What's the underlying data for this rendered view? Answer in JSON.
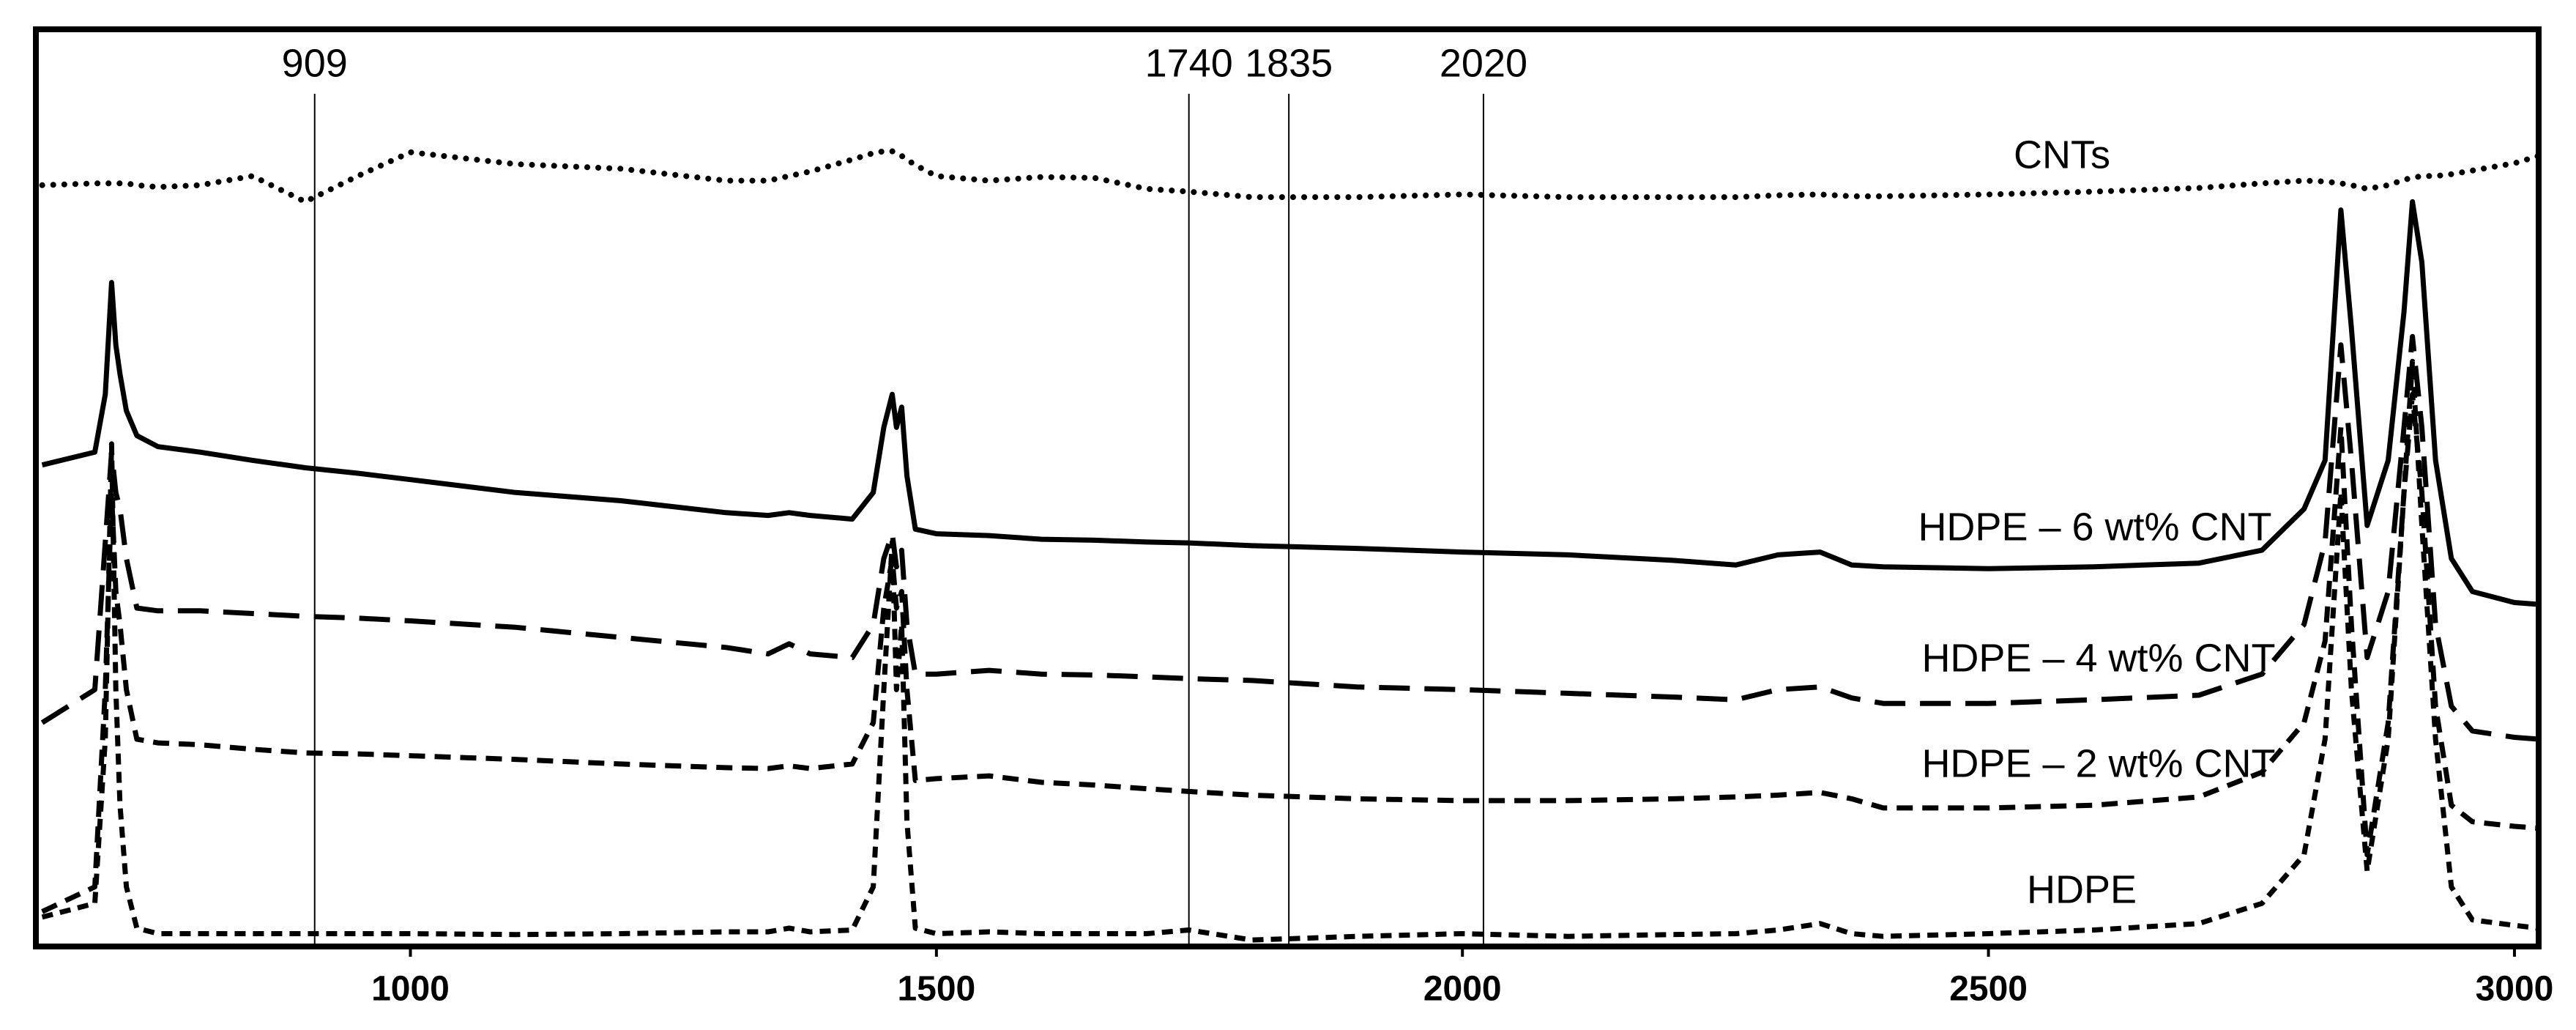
{
  "chart_data": {
    "type": "line",
    "x": [
      650,
      700,
      710,
      716,
      720,
      724,
      730,
      740,
      760,
      800,
      850,
      900,
      950,
      1000,
      1100,
      1200,
      1300,
      1340,
      1360,
      1380,
      1420,
      1440,
      1450,
      1458,
      1462,
      1467,
      1472,
      1480,
      1500,
      1550,
      1600,
      1650,
      1700,
      1740,
      1800,
      1900,
      2000,
      2100,
      2200,
      2260,
      2300,
      2340,
      2370,
      2400,
      2500,
      2600,
      2700,
      2760,
      2800,
      2820,
      2835,
      2845,
      2860,
      2880,
      2895,
      2903,
      2912,
      2925,
      2940,
      2960,
      3000,
      3023
    ],
    "series": [
      {
        "name": "CNTs",
        "color": "#000000",
        "dash": "dotted",
        "values": [
          83.0,
          83.2,
          83.2,
          83.2,
          83.2,
          83.2,
          83.2,
          83.0,
          82.8,
          83.0,
          84.0,
          81.2,
          84.0,
          86.6,
          85.3,
          84.8,
          83.5,
          83.5,
          84.0,
          84.5,
          85.8,
          86.5,
          86.7,
          86.7,
          86.5,
          86.2,
          85.8,
          85.2,
          84.0,
          83.5,
          83.9,
          83.8,
          82.6,
          82.3,
          81.7,
          81.7,
          82.0,
          81.7,
          81.7,
          81.7,
          81.9,
          82.0,
          81.8,
          81.8,
          82.0,
          82.3,
          82.7,
          83.2,
          83.5,
          83.4,
          83.2,
          83.0,
          82.6,
          83.0,
          83.6,
          83.8,
          84.0,
          84.0,
          84.2,
          84.6,
          85.4,
          86.2
        ]
      },
      {
        "name": "HDPE – 6 wt% CNT",
        "color": "#000000",
        "dash": "solid",
        "values": [
          52.5,
          53.9,
          60.2,
          72.4,
          65.6,
          62.4,
          58.4,
          55.7,
          54.5,
          53.9,
          53.0,
          52.2,
          51.6,
          50.9,
          49.5,
          48.6,
          47.3,
          47.0,
          47.3,
          47.0,
          46.6,
          49.5,
          56.6,
          60.2,
          56.6,
          58.8,
          51.3,
          45.5,
          45.0,
          44.8,
          44.4,
          44.3,
          44.1,
          44.0,
          43.7,
          43.4,
          43.0,
          42.7,
          42.1,
          41.6,
          42.7,
          43.0,
          41.6,
          41.4,
          41.2,
          41.4,
          41.8,
          43.2,
          47.7,
          53.0,
          80.3,
          67.4,
          45.9,
          53.0,
          69.2,
          81.2,
          74.6,
          53.0,
          42.3,
          38.7,
          37.5,
          37.3
        ]
      },
      {
        "name": "HDPE – 4 wt% CNT",
        "color": "#000000",
        "dash": "long-dash",
        "values": [
          24.4,
          28.0,
          44.1,
          53.9,
          49.5,
          47.7,
          42.3,
          36.9,
          36.6,
          36.6,
          36.3,
          36.0,
          35.8,
          35.5,
          34.8,
          33.7,
          32.6,
          31.9,
          33.0,
          31.9,
          31.5,
          35.1,
          42.3,
          45.0,
          41.4,
          43.2,
          35.1,
          29.7,
          29.7,
          30.1,
          29.7,
          29.6,
          29.4,
          29.2,
          29.0,
          28.3,
          28.0,
          27.6,
          27.2,
          26.9,
          28.0,
          28.3,
          27.1,
          26.5,
          26.5,
          26.9,
          27.4,
          29.7,
          35.1,
          44.1,
          65.6,
          53.0,
          31.5,
          38.7,
          56.6,
          66.5,
          56.6,
          35.1,
          26.2,
          23.5,
          22.8,
          22.6
        ]
      },
      {
        "name": "HDPE – 2 wt% CNT",
        "color": "#000000",
        "dash": "dash",
        "values": [
          3.8,
          6.5,
          28.0,
          49.5,
          38.7,
          35.1,
          28.0,
          22.6,
          22.2,
          22.0,
          21.5,
          21.1,
          21.0,
          20.8,
          20.4,
          19.9,
          19.5,
          19.4,
          19.7,
          19.4,
          19.9,
          24.4,
          36.9,
          42.3,
          36.9,
          38.7,
          28.0,
          18.1,
          18.3,
          18.6,
          17.9,
          17.6,
          17.2,
          16.9,
          16.5,
          16.1,
          15.9,
          15.9,
          16.1,
          16.3,
          16.5,
          16.8,
          16.1,
          15.1,
          15.1,
          15.4,
          16.3,
          19.0,
          24.4,
          33.3,
          56.6,
          35.1,
          10.0,
          24.4,
          49.5,
          60.2,
          49.5,
          26.2,
          15.4,
          13.6,
          13.1,
          12.9
        ]
      },
      {
        "name": "HDPE",
        "color": "#000000",
        "dash": "short-dash",
        "values": [
          3.2,
          4.7,
          22.6,
          54.8,
          28.0,
          15.4,
          6.5,
          2.0,
          1.4,
          1.4,
          1.4,
          1.4,
          1.4,
          1.4,
          1.3,
          1.4,
          1.6,
          1.6,
          2.0,
          1.6,
          1.8,
          6.5,
          28.0,
          44.1,
          28.0,
          35.1,
          13.6,
          2.0,
          1.4,
          1.6,
          1.4,
          1.4,
          1.4,
          1.8,
          0.7,
          1.1,
          1.4,
          1.1,
          1.3,
          1.4,
          1.8,
          2.5,
          1.4,
          1.1,
          1.4,
          1.8,
          2.5,
          4.7,
          10.0,
          22.6,
          49.5,
          28.0,
          8.2,
          22.6,
          49.5,
          63.8,
          45.9,
          22.6,
          6.5,
          2.9,
          2.3,
          2.0
        ]
      }
    ],
    "xlim": [
      644,
      3023
    ],
    "xticks": [
      1000,
      1500,
      2000,
      2500,
      3000
    ],
    "ylim": [
      0,
      100
    ],
    "vlines": [
      909,
      1740,
      1835,
      2020
    ],
    "grid": false
  }
}
